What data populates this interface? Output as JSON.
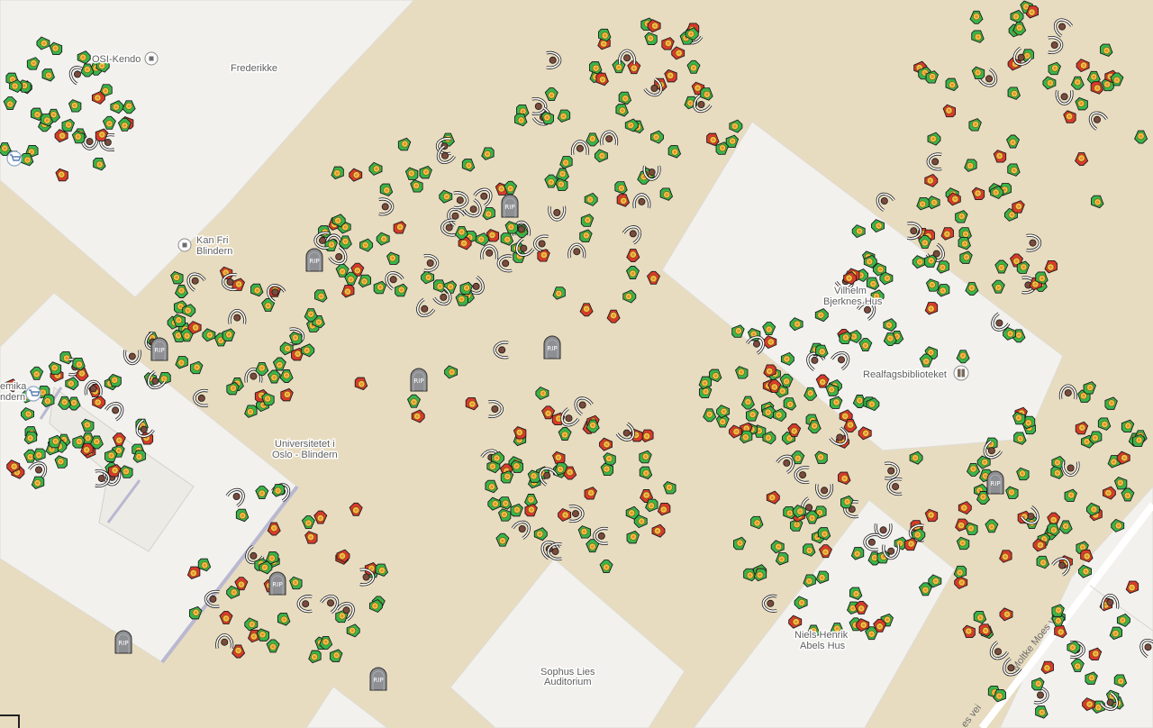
{
  "map": {
    "colors": {
      "ground": "#e8dcc0",
      "building": "#f2f1ed",
      "building_shadow": "#d9d6cf",
      "road": "#ffffff",
      "label": "#5f5f5f",
      "elf_green": "#39b54a",
      "elf_red": "#d93a2b",
      "elf_face": "#f4c542",
      "rider_body": "#7a4a3c",
      "tombstone": "#8e8f93"
    },
    "labels": {
      "osi_kendo": "OSI-Kendo",
      "frederikke": "Frederikke",
      "kan_fri_1": "Kan Fri",
      "kan_fri_2": "Blindern",
      "vilhelm_1": "Vilhelm",
      "vilhelm_2": "Bjerknes Hus",
      "realfags": "Realfagsbiblioteket",
      "akademika_1": "emika",
      "akademika_2": "ndern",
      "universitetet_1": "Universitetet i",
      "universitetet_2": "Oslo - Blindern",
      "niels_1": "Niels Henrik",
      "niels_2": "Abels Hus",
      "sophus_1": "Sophus Lies",
      "sophus_2": "Auditorium",
      "moltke": "Moltke Moes vei",
      "road_bottom": "es vei"
    },
    "poi_icons": [
      "square-poi-icon",
      "shopping-cart-icon",
      "book-icon"
    ],
    "unit_icons": [
      "green-elf-icon",
      "red-elf-icon",
      "rider-icon",
      "tombstone-icon"
    ],
    "tombstone_text": "RIP"
  }
}
